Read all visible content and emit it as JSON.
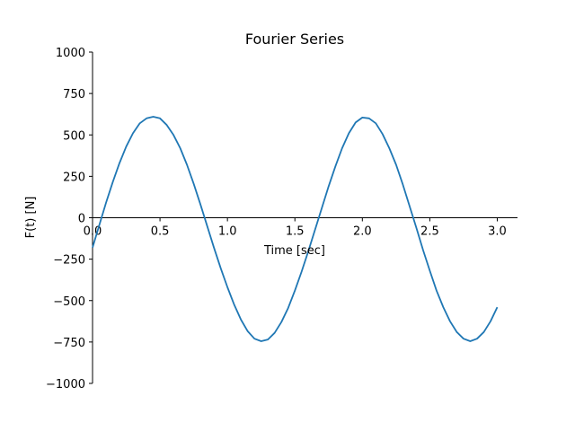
{
  "chart_data": {
    "type": "line",
    "title": "Fourier Series",
    "xlabel": "Time [sec]",
    "ylabel": "F(t) [N]",
    "xlim": [
      0.0,
      3.15
    ],
    "ylim": [
      -1000,
      1000
    ],
    "xticks": [
      0.0,
      0.5,
      1.0,
      1.5,
      2.0,
      2.5,
      3.0
    ],
    "xtick_labels": [
      "0.0",
      "0.5",
      "1.0",
      "1.5",
      "2.0",
      "2.5",
      "3.0"
    ],
    "yticks": [
      -1000,
      -750,
      -500,
      -250,
      0,
      250,
      500,
      750,
      1000
    ],
    "ytick_labels": [
      "−1000",
      "−750",
      "−500",
      "−250",
      "0",
      "250",
      "500",
      "750",
      "1000"
    ],
    "grid": false,
    "spines": "centered-x-at-zero",
    "series": [
      {
        "color": "#1f77b4",
        "x": [
          0.0,
          0.05,
          0.1,
          0.15,
          0.2,
          0.25,
          0.3,
          0.35,
          0.4,
          0.45,
          0.5,
          0.55,
          0.6,
          0.65,
          0.7,
          0.75,
          0.8,
          0.85,
          0.9,
          0.95,
          1.0,
          1.05,
          1.1,
          1.15,
          1.2,
          1.25,
          1.3,
          1.35,
          1.4,
          1.45,
          1.5,
          1.55,
          1.6,
          1.65,
          1.7,
          1.75,
          1.8,
          1.85,
          1.9,
          1.95,
          2.0,
          2.05,
          2.1,
          2.15,
          2.2,
          2.25,
          2.3,
          2.35,
          2.4,
          2.45,
          2.5,
          2.55,
          2.6,
          2.65,
          2.7,
          2.75,
          2.8,
          2.85,
          2.9,
          2.95,
          3.0
        ],
        "y": [
          -180,
          -45,
          90,
          215,
          330,
          430,
          510,
          570,
          600,
          610,
          600,
          560,
          500,
          420,
          320,
          205,
          80,
          -50,
          -180,
          -305,
          -420,
          -525,
          -615,
          -685,
          -730,
          -745,
          -735,
          -695,
          -630,
          -545,
          -440,
          -325,
          -200,
          -70,
          60,
          190,
          310,
          420,
          510,
          575,
          605,
          600,
          570,
          505,
          420,
          320,
          200,
          70,
          -60,
          -195,
          -320,
          -440,
          -540,
          -625,
          -690,
          -730,
          -745,
          -730,
          -690,
          -625,
          -540
        ]
      }
    ]
  }
}
